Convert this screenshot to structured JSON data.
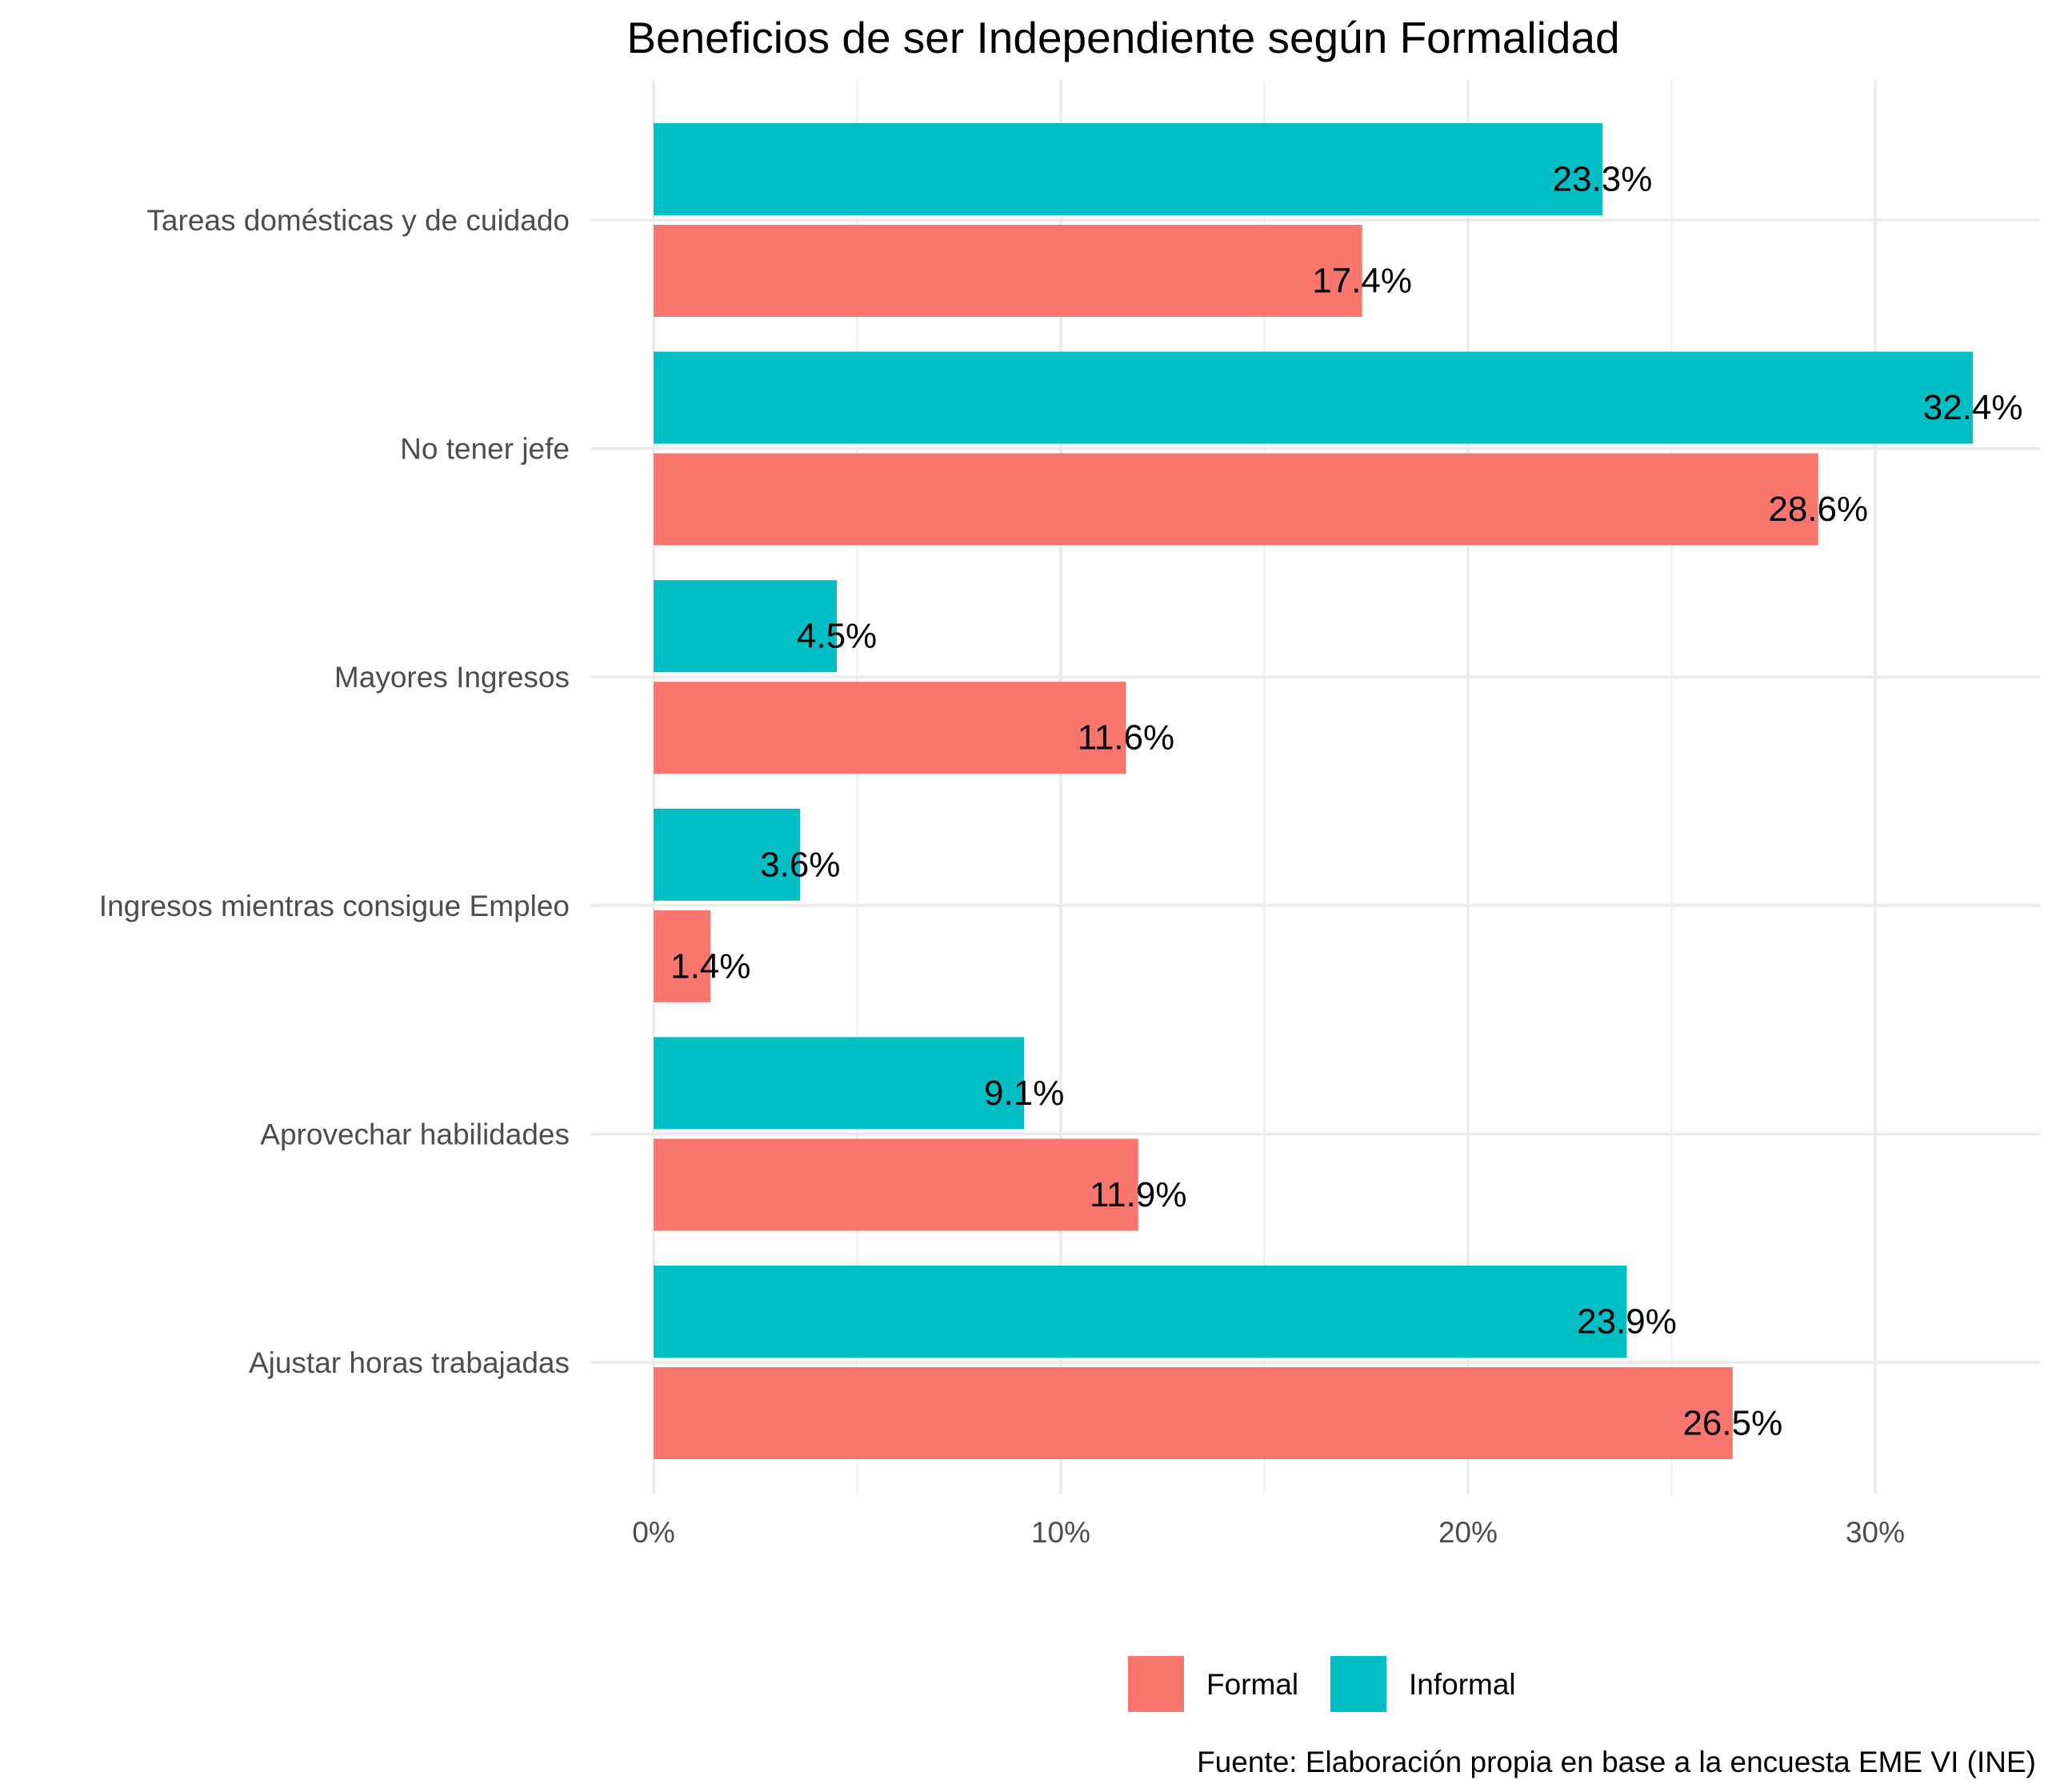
{
  "chart_data": {
    "type": "bar",
    "orientation": "horizontal",
    "title": "Beneficios de ser Independiente según Formalidad",
    "caption": "Fuente: Elaboración propia en base a la encuesta EME VI (INE)",
    "xlabel": "",
    "ylabel": "",
    "x_ticks": [
      "0%",
      "10%",
      "20%",
      "30%"
    ],
    "x_tick_values": [
      0,
      10,
      20,
      30
    ],
    "xlim": [
      0,
      34
    ],
    "grid": true,
    "legend_position": "bottom",
    "categories": [
      "Tareas domésticas y de cuidado",
      "No tener jefe",
      "Mayores Ingresos",
      "Ingresos mientras consigue Empleo",
      "Aprovechar habilidades",
      "Ajustar horas trabajadas"
    ],
    "series": [
      {
        "name": "Informal",
        "color": "#00BFC4",
        "values": [
          23.3,
          32.4,
          4.5,
          3.6,
          9.1,
          23.9
        ],
        "labels": [
          "23.3%",
          "32.4%",
          "4.5%",
          "3.6%",
          "9.1%",
          "23.9%"
        ]
      },
      {
        "name": "Formal",
        "color": "#F8766D",
        "values": [
          17.4,
          28.6,
          11.6,
          1.4,
          11.9,
          26.5
        ],
        "labels": [
          "17.4%",
          "28.6%",
          "11.6%",
          "1.4%",
          "11.9%",
          "26.5%"
        ]
      }
    ],
    "legend": [
      {
        "name": "Formal",
        "color": "#F8766D"
      },
      {
        "name": "Informal",
        "color": "#00BFC4"
      }
    ]
  }
}
